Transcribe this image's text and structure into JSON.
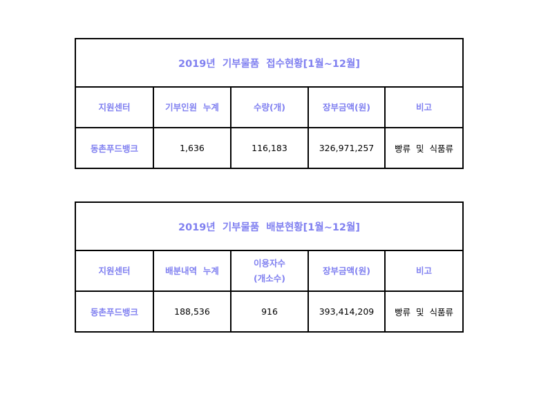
{
  "tables": [
    {
      "title": "2019년  기부물품  접수현황[1월~12월]",
      "headers": [
        "지원센터",
        "기부인원  누계",
        "수량(개)",
        "장부금액(원)",
        "비고"
      ],
      "row": [
        "동촌푸드뱅크",
        "1,636",
        "116,183",
        "326,971,257",
        "빵류  및  식품류"
      ]
    },
    {
      "title": "2019년  기부물품  배분현황[1월~12월]",
      "headers": [
        "지원센터",
        "배분내역  누계",
        "이용자수\n(개소수)",
        "장부금액(원)",
        "비고"
      ],
      "row": [
        "동촌푸드뱅크",
        "188,536",
        "916",
        "393,414,209",
        "빵류  및  식품류"
      ]
    }
  ],
  "colors": {
    "header_text": "#8080f0",
    "border": "#000000"
  }
}
